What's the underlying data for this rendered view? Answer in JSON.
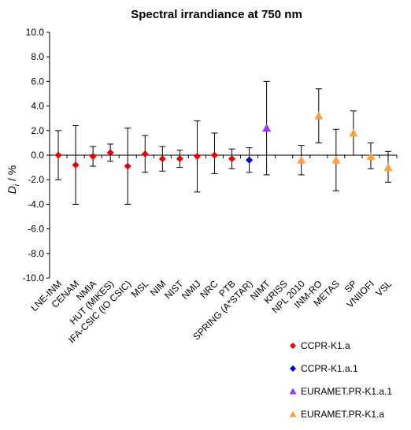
{
  "chart_data": {
    "type": "scatter",
    "title": "Spectral irrandiance at 750 nm",
    "xlabel": "",
    "ylabel": "Di / %",
    "ylabel_main": "D",
    "ylabel_sub": "i",
    "ylabel_rest": " / %",
    "ylim": [
      -10,
      10
    ],
    "yticks": [
      "10.0",
      "8.0",
      "6.0",
      "4.0",
      "2.0",
      "0.0",
      "-2.0",
      "-4.0",
      "-6.0",
      "-8.0",
      "-10.0"
    ],
    "categories": [
      "LNE-INM",
      "CENAM",
      "NMIA",
      "HUT (MIKES)",
      "IFA-CSIC (IO CSIC)",
      "MSL",
      "NIM",
      "NIST",
      "NMIJ",
      "NRC",
      "PTB",
      "SPRING (A*STAR)",
      "NIMT",
      "KRISS",
      "NPL 2010",
      "INM-RO",
      "METAS",
      "SP",
      "VNIIOFI",
      "VSL"
    ],
    "grid": false,
    "legend_position": "bottom-right",
    "series": [
      {
        "name": "CCPR-K1.a",
        "marker": "diamond",
        "color": "#ee0000",
        "points": [
          {
            "category": "LNE-INM",
            "y": 0.0,
            "err_low": -2.0,
            "err_high": 2.0
          },
          {
            "category": "CENAM",
            "y": -0.8,
            "err_low": -4.0,
            "err_high": 2.4
          },
          {
            "category": "NMIA",
            "y": -0.1,
            "err_low": -0.9,
            "err_high": 0.7
          },
          {
            "category": "HUT (MIKES)",
            "y": 0.2,
            "err_low": -0.5,
            "err_high": 0.9
          },
          {
            "category": "IFA-CSIC (IO CSIC)",
            "y": -0.9,
            "err_low": -4.0,
            "err_high": 2.2
          },
          {
            "category": "MSL",
            "y": 0.1,
            "err_low": -1.4,
            "err_high": 1.6
          },
          {
            "category": "NIM",
            "y": -0.3,
            "err_low": -1.3,
            "err_high": 0.7
          },
          {
            "category": "NIST",
            "y": -0.3,
            "err_low": -1.0,
            "err_high": 0.4
          },
          {
            "category": "NMIJ",
            "y": -0.1,
            "err_low": -3.0,
            "err_high": 2.8
          },
          {
            "category": "NRC",
            "y": 0.0,
            "err_low": -1.5,
            "err_high": 1.8
          },
          {
            "category": "PTB",
            "y": -0.3,
            "err_low": -1.1,
            "err_high": 0.5
          }
        ]
      },
      {
        "name": "CCPR-K1.a.1",
        "marker": "diamond",
        "color": "#0000ee",
        "points": [
          {
            "category": "SPRING (A*STAR)",
            "y": -0.4,
            "err_low": -1.4,
            "err_high": 0.6
          }
        ]
      },
      {
        "name": "EURAMET.PR-K1.a.1",
        "marker": "triangle",
        "color": "#9933ff",
        "points": [
          {
            "category": "NIMT",
            "y": 2.2,
            "err_low": -1.6,
            "err_high": 6.0
          }
        ]
      },
      {
        "name": "EURAMET.PR-K1.a",
        "marker": "triangle",
        "color": "#ffa040",
        "points": [
          {
            "category": "NPL 2010",
            "y": -0.4,
            "err_low": -1.6,
            "err_high": 0.8
          },
          {
            "category": "INM-RO",
            "y": 3.2,
            "err_low": 1.0,
            "err_high": 5.4
          },
          {
            "category": "METAS",
            "y": -0.4,
            "err_low": -2.9,
            "err_high": 2.1
          },
          {
            "category": "SP",
            "y": 1.8,
            "err_low": 0.0,
            "err_high": 3.6
          },
          {
            "category": "VNIIOFI",
            "y": -0.1,
            "err_low": -1.1,
            "err_high": 1.0
          },
          {
            "category": "VSL",
            "y": -1.0,
            "err_low": -2.2,
            "err_high": 0.3
          }
        ]
      }
    ]
  }
}
